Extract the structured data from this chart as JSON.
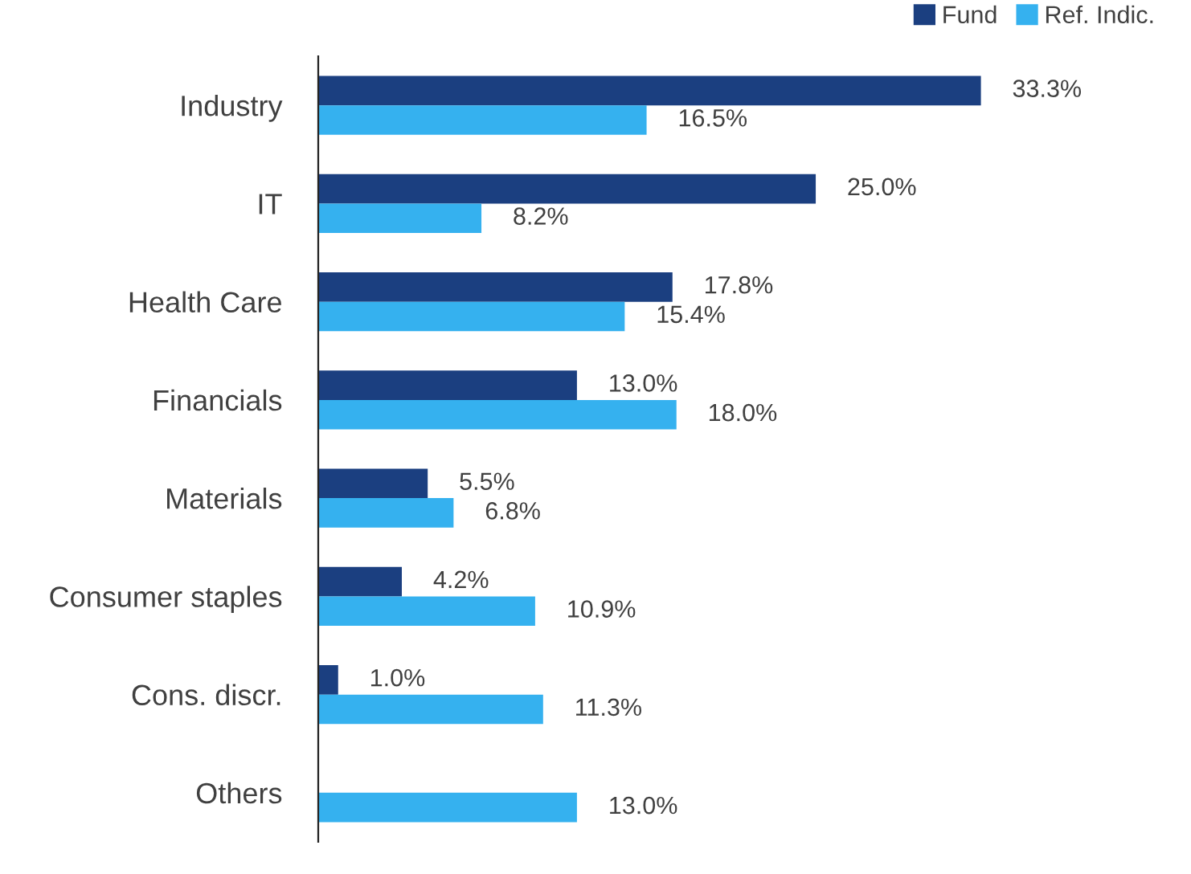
{
  "chart_data": {
    "type": "bar",
    "orientation": "horizontal",
    "legend": "top right",
    "categories": [
      "Industry",
      "IT",
      "Health Care",
      "Financials",
      "Materials",
      "Consumer staples",
      "Cons. discr.",
      "Others"
    ],
    "series": [
      {
        "name": "Fund",
        "color": "#1b3f80",
        "values": [
          33.3,
          25.0,
          17.8,
          13.0,
          5.5,
          4.2,
          1.0,
          null
        ],
        "value_labels": [
          "33.3%",
          "25.0%",
          "17.8%",
          "13.0%",
          "5.5%",
          "4.2%",
          "1.0%",
          null
        ]
      },
      {
        "name": "Ref. Indic.",
        "color": "#35b1ef",
        "values": [
          16.5,
          8.2,
          15.4,
          18.0,
          6.8,
          10.9,
          11.3,
          13.0
        ],
        "value_labels": [
          "16.5%",
          "8.2%",
          "15.4%",
          "18.0%",
          "6.8%",
          "10.9%",
          "11.3%",
          "13.0%"
        ]
      }
    ]
  }
}
